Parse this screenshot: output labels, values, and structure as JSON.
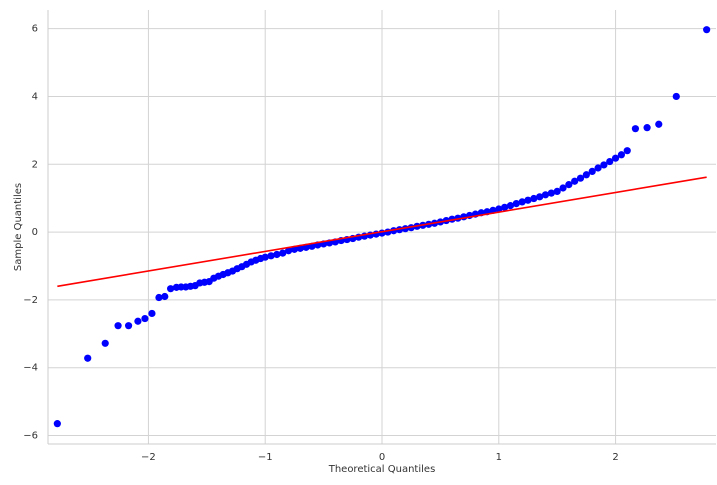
{
  "chart_data": {
    "type": "scatter",
    "xlabel": "Theoretical Quantiles",
    "ylabel": "Sample Quantiles",
    "x": [
      -2.78,
      -2.52,
      -2.37,
      -2.26,
      -2.17,
      -2.09,
      -2.03,
      -1.97,
      -1.91,
      -1.86,
      -1.81,
      -1.76,
      -1.72,
      -1.68,
      -1.64,
      -1.6,
      -1.56,
      -1.52,
      -1.48,
      -1.44,
      -1.4,
      -1.36,
      -1.32,
      -1.28,
      -1.24,
      -1.2,
      -1.16,
      -1.12,
      -1.08,
      -1.04,
      -1.0,
      -0.95,
      -0.9,
      -0.85,
      -0.8,
      -0.75,
      -0.7,
      -0.65,
      -0.6,
      -0.55,
      -0.5,
      -0.45,
      -0.4,
      -0.35,
      -0.3,
      -0.25,
      -0.2,
      -0.15,
      -0.1,
      -0.05,
      0.0,
      0.05,
      0.1,
      0.15,
      0.2,
      0.25,
      0.3,
      0.35,
      0.4,
      0.45,
      0.5,
      0.55,
      0.6,
      0.65,
      0.7,
      0.75,
      0.8,
      0.85,
      0.9,
      0.95,
      1.0,
      1.05,
      1.1,
      1.15,
      1.2,
      1.25,
      1.3,
      1.35,
      1.4,
      1.45,
      1.5,
      1.55,
      1.6,
      1.65,
      1.7,
      1.75,
      1.8,
      1.85,
      1.9,
      1.95,
      2.0,
      2.05,
      2.1,
      2.17,
      2.27,
      2.37,
      2.52,
      2.78
    ],
    "values": [
      -5.65,
      -3.72,
      -3.28,
      -2.76,
      -2.76,
      -2.63,
      -2.55,
      -2.4,
      -1.93,
      -1.9,
      -1.67,
      -1.63,
      -1.62,
      -1.62,
      -1.6,
      -1.58,
      -1.5,
      -1.48,
      -1.46,
      -1.36,
      -1.3,
      -1.25,
      -1.2,
      -1.15,
      -1.08,
      -1.02,
      -0.95,
      -0.88,
      -0.83,
      -0.78,
      -0.74,
      -0.7,
      -0.66,
      -0.62,
      -0.55,
      -0.51,
      -0.48,
      -0.45,
      -0.42,
      -0.38,
      -0.35,
      -0.32,
      -0.29,
      -0.25,
      -0.22,
      -0.19,
      -0.15,
      -0.12,
      -0.09,
      -0.06,
      -0.03,
      0.0,
      0.04,
      0.07,
      0.1,
      0.13,
      0.17,
      0.2,
      0.23,
      0.26,
      0.3,
      0.34,
      0.38,
      0.41,
      0.45,
      0.49,
      0.53,
      0.57,
      0.6,
      0.64,
      0.68,
      0.73,
      0.78,
      0.84,
      0.89,
      0.94,
      0.99,
      1.04,
      1.1,
      1.15,
      1.2,
      1.3,
      1.4,
      1.5,
      1.59,
      1.69,
      1.79,
      1.89,
      1.98,
      2.08,
      2.18,
      2.28,
      2.4,
      3.05,
      3.08,
      3.18,
      4.0,
      5.97
    ],
    "color": "#0000ff",
    "fit_line": {
      "x": [
        -2.78,
        2.78
      ],
      "values": [
        -1.6,
        1.62
      ],
      "color": "#ff0000"
    },
    "xlim": [
      -2.86,
      2.86
    ],
    "ylim": [
      -6.25,
      6.55
    ],
    "xticks": [
      {
        "value": -2,
        "label": "−2"
      },
      {
        "value": -1,
        "label": "−1"
      },
      0,
      1,
      2
    ],
    "yticks": [
      {
        "value": -6,
        "label": "−6"
      },
      {
        "value": -4,
        "label": "−4"
      },
      {
        "value": -2,
        "label": "−2"
      },
      0,
      2,
      4,
      6
    ],
    "grid": true
  }
}
